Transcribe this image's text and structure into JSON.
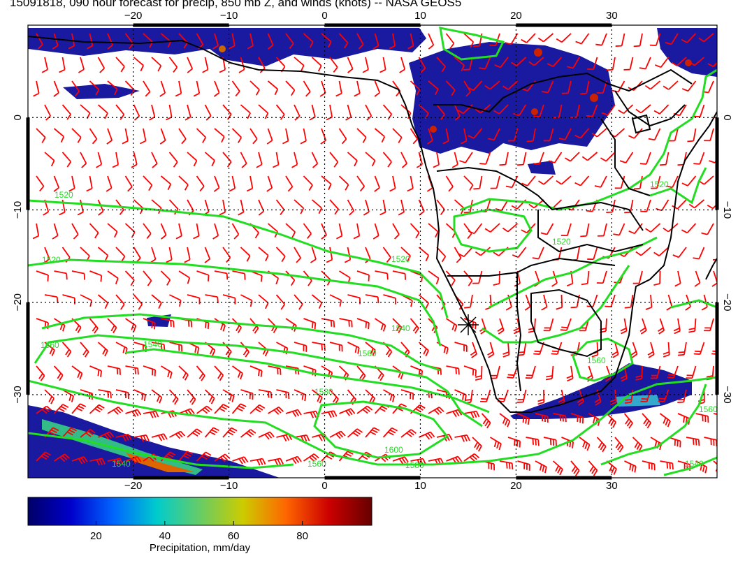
{
  "title": "15091818, 090 hour forecast for precip, 850 mb Z, and winds (knots) -- NASA GEOS5",
  "map": {
    "lon_range": [
      -31,
      41
    ],
    "lat_range": [
      -39,
      10
    ],
    "lon_ticks": [
      {
        "value": -20,
        "label": "−20"
      },
      {
        "value": -10,
        "label": "−10"
      },
      {
        "value": 0,
        "label": "0"
      },
      {
        "value": 10,
        "label": "10"
      },
      {
        "value": 20,
        "label": "20"
      },
      {
        "value": 30,
        "label": "30"
      }
    ],
    "lat_ticks": [
      {
        "value": 0,
        "label": "0"
      },
      {
        "value": -10,
        "label": "−10"
      },
      {
        "value": -20,
        "label": "−20"
      },
      {
        "value": -30,
        "label": "−30"
      }
    ],
    "contour_color": "#22dd22",
    "wind_color": "#ff0000",
    "coast_color": "#000000",
    "contour_labels": [
      "1520",
      "1520",
      "1520",
      "1540",
      "1560",
      "1540",
      "1560",
      "1580",
      "1600",
      "1580",
      "1560",
      "1540",
      "1520",
      "1520",
      "1560",
      "1560",
      "1540"
    ]
  },
  "colorbar": {
    "label": "Precipitation, mm/day",
    "range": [
      0,
      100
    ],
    "ticks": [
      {
        "value": 20,
        "label": "20"
      },
      {
        "value": 40,
        "label": "40"
      },
      {
        "value": 60,
        "label": "60"
      },
      {
        "value": 80,
        "label": "80"
      }
    ],
    "colors": [
      "#000066",
      "#0000cc",
      "#0066ff",
      "#00cccc",
      "#66cc66",
      "#cccc00",
      "#ff6600",
      "#cc0000",
      "#660000"
    ]
  }
}
